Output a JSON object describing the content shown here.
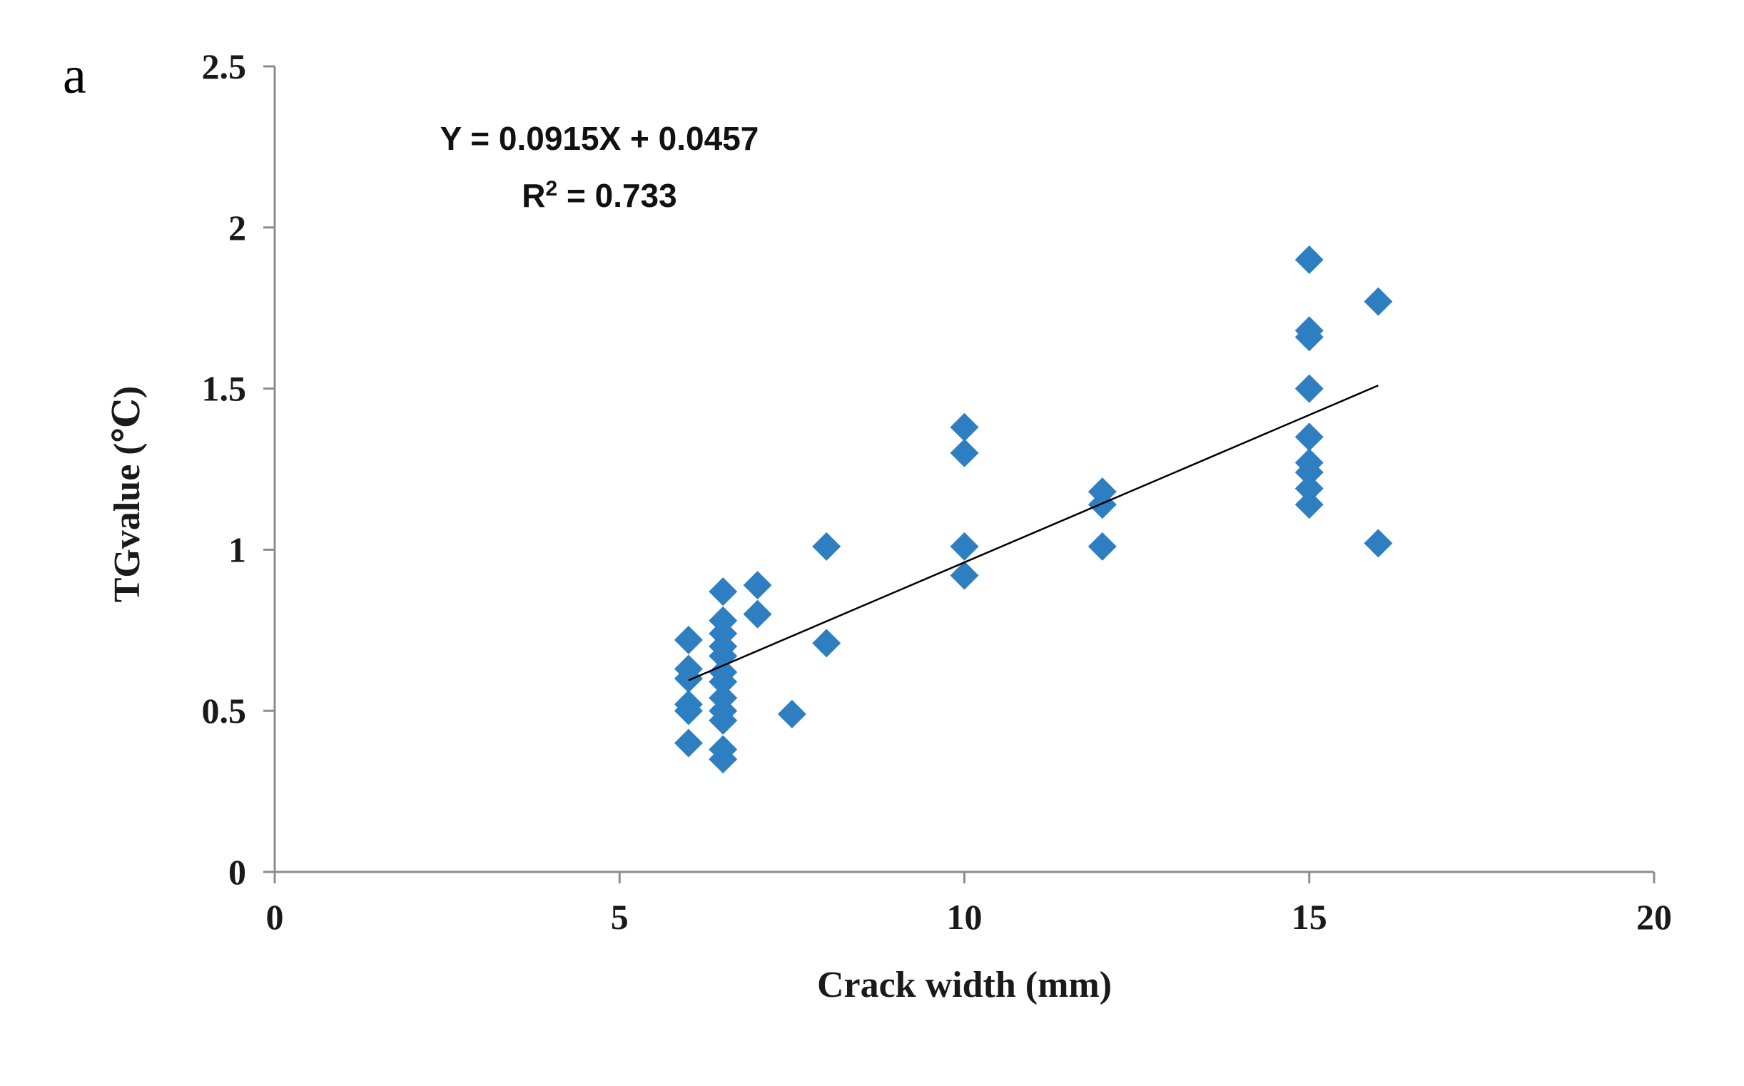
{
  "panel_label": "a",
  "chart_data": {
    "type": "scatter",
    "xlabel": "Crack width (mm)",
    "ylabel": "TGvalue (℃)",
    "xlim": [
      0,
      20
    ],
    "ylim": [
      0,
      2.5
    ],
    "x_ticks": [
      "0",
      "5",
      "10",
      "15",
      "20"
    ],
    "y_ticks": [
      "0",
      "0.5",
      "1",
      "1.5",
      "2",
      "2.5"
    ],
    "grid": false,
    "marker": "diamond",
    "point_color": "#2e7fc1",
    "series": [
      {
        "points": [
          [
            6,
            0.72
          ],
          [
            6,
            0.63
          ],
          [
            6,
            0.6
          ],
          [
            6,
            0.52
          ],
          [
            6,
            0.5
          ],
          [
            6,
            0.4
          ],
          [
            6.5,
            0.87
          ],
          [
            6.5,
            0.78
          ],
          [
            6.5,
            0.74
          ],
          [
            6.5,
            0.7
          ],
          [
            6.5,
            0.67
          ],
          [
            6.5,
            0.62
          ],
          [
            6.5,
            0.59
          ],
          [
            6.5,
            0.54
          ],
          [
            6.5,
            0.5
          ],
          [
            6.5,
            0.47
          ],
          [
            6.5,
            0.38
          ],
          [
            6.5,
            0.35
          ],
          [
            7,
            0.89
          ],
          [
            7,
            0.8
          ],
          [
            7.5,
            0.49
          ],
          [
            8,
            1.01
          ],
          [
            8,
            0.71
          ],
          [
            10,
            1.38
          ],
          [
            10,
            1.3
          ],
          [
            10,
            1.01
          ],
          [
            10,
            0.92
          ],
          [
            12,
            1.18
          ],
          [
            12,
            1.14
          ],
          [
            12,
            1.01
          ],
          [
            15,
            1.9
          ],
          [
            15,
            1.68
          ],
          [
            15,
            1.66
          ],
          [
            15,
            1.5
          ],
          [
            15,
            1.35
          ],
          [
            15,
            1.27
          ],
          [
            15,
            1.24
          ],
          [
            15,
            1.19
          ],
          [
            15,
            1.14
          ],
          [
            16,
            1.77
          ],
          [
            16,
            1.02
          ]
        ]
      }
    ],
    "trendline": {
      "slope": 0.0915,
      "intercept": 0.0457,
      "x_range": [
        6,
        16
      ],
      "equation_text": "Y = 0.0915X + 0.0457",
      "r2_text_prefix": "R",
      "r2_text_suffix": " = 0.733"
    }
  }
}
